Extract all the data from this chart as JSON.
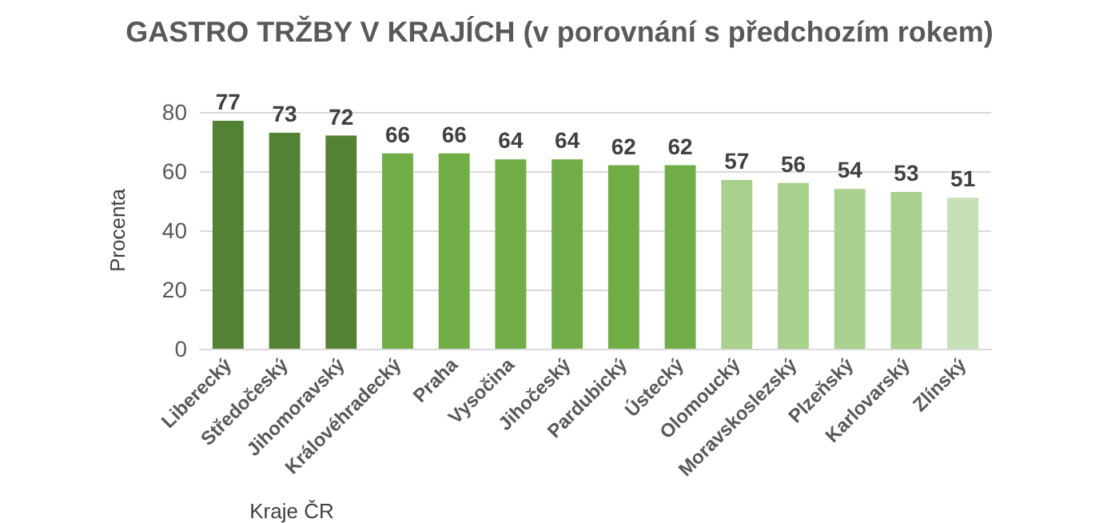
{
  "chart_data": {
    "type": "bar",
    "title": "GASTRO TRŽBY V KRAJÍCH (v porovnání s předchozím rokem)",
    "xlabel": "Kraje ČR",
    "ylabel": "Procenta",
    "categories": [
      "Liberecký",
      "Středočeský",
      "Jihomoravský",
      "Královéhradecký",
      "Praha",
      "Vysočina",
      "Jihočeský",
      "Pardubický",
      "Ústecký",
      "Olomoucký",
      "Moravskoslezský",
      "Plzeňský",
      "Karlovarský",
      "Zlínský"
    ],
    "values": [
      77,
      73,
      72,
      66,
      66,
      64,
      64,
      62,
      62,
      57,
      56,
      54,
      53,
      51
    ],
    "colors": [
      "#548235",
      "#548235",
      "#548235",
      "#70ad47",
      "#70ad47",
      "#70ad47",
      "#70ad47",
      "#70ad47",
      "#70ad47",
      "#a9d18e",
      "#a9d18e",
      "#a9d18e",
      "#a9d18e",
      "#c5e0b4"
    ],
    "ylim": [
      0,
      80
    ],
    "yticks": [
      0,
      20,
      40,
      60,
      80
    ],
    "grid": "y",
    "data_labels": true
  }
}
